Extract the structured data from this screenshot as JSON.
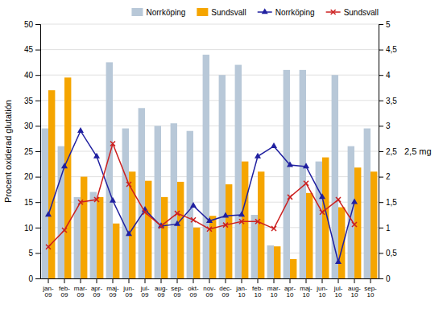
{
  "chart_data": {
    "type": "bar",
    "y_label": "Procent oxiderad glutatión",
    "y2_label": "2,5 mg",
    "categories": [
      "jan-\n09",
      "feb-\n09",
      "mar-\n09",
      "apr-\n09",
      "maj-\n09",
      "jun-\n09",
      "jul-\n09",
      "aug-\n09",
      "sep-\n09",
      "okt-\n09",
      "nov-\n09",
      "dec-\n09",
      "jan-\n10",
      "feb-\n10",
      "mar-\n10",
      "apr-\n10",
      "maj-\n10",
      "jun-\n10",
      "jul-\n10",
      "aug-\n10",
      "sep-\n10"
    ],
    "series": [
      {
        "name": "Norrköping",
        "type": "bar",
        "color": "#b8c8d8",
        "values": [
          29.5,
          26,
          16,
          17,
          42.5,
          29.5,
          33.5,
          30,
          30.5,
          29,
          44,
          40,
          42,
          12.5,
          6.5,
          41,
          41,
          23,
          40,
          26,
          29.5
        ]
      },
      {
        "name": "Sundsvall",
        "type": "bar",
        "color": "#f5a500",
        "values": [
          37,
          39.5,
          20,
          16,
          10.8,
          21,
          19.2,
          16,
          19,
          10,
          12.3,
          18.5,
          23,
          21,
          6.3,
          3.8,
          16.8,
          23.8,
          14,
          21.8,
          21
        ]
      },
      {
        "name": "Norrköping",
        "type": "line",
        "color": "#2020a0",
        "marker": "triangle",
        "values": [
          12.5,
          22,
          29,
          24,
          15.3,
          8.7,
          13.5,
          10.3,
          10.7,
          14.3,
          11.3,
          12.3,
          12.5,
          24,
          26,
          22.3,
          22,
          16,
          3.2,
          15,
          null
        ]
      },
      {
        "name": "Sundsvall",
        "type": "line",
        "color": "#cc2020",
        "marker": "x",
        "values": [
          6.2,
          9.5,
          15,
          15.5,
          26.5,
          18.5,
          13,
          10.3,
          12.8,
          11.5,
          9.7,
          10.5,
          11.2,
          11.2,
          9.8,
          16,
          18.7,
          13,
          15.5,
          10.6,
          null
        ]
      }
    ],
    "ylim": [
      0,
      50
    ],
    "yticks": [
      0,
      5,
      10,
      15,
      20,
      25,
      30,
      35,
      40,
      45,
      50
    ],
    "y2lim": [
      0,
      5
    ],
    "y2ticks": [
      0,
      {
        "value": 0.5,
        "label": "0,5"
      },
      1,
      {
        "value": 1.5,
        "label": "1,5"
      },
      2,
      {
        "value": 2.5,
        "label": "2,5"
      },
      3,
      {
        "value": 3.5,
        "label": "3,5"
      },
      4,
      {
        "value": 4.5,
        "label": "4,5"
      },
      5
    ],
    "grid": true,
    "legend": "upper right"
  }
}
